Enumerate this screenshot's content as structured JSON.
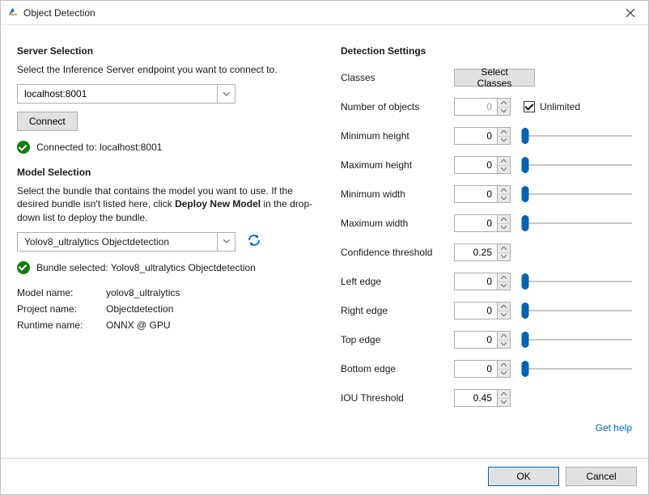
{
  "window": {
    "title": "Object Detection"
  },
  "server": {
    "heading": "Server Selection",
    "desc": "Select the Inference Server endpoint you want to connect to.",
    "endpoint": "localhost:8001",
    "connect_label": "Connect",
    "status_text": "Connected to: localhost:8001"
  },
  "model": {
    "heading": "Model Selection",
    "desc_pre": "Select the bundle that contains the model you want to use. If the desired bundle isn't listed here, click ",
    "desc_bold": "Deploy New Model",
    "desc_post": " in the drop-down list to deploy the bundle.",
    "selected": "Yolov8_ultralytics Objectdetection",
    "status_text": "Bundle selected: Yolov8_ultralytics Objectdetection",
    "kv": {
      "model_name_k": "Model name:",
      "model_name_v": "yolov8_ultralytics",
      "project_name_k": "Project name:",
      "project_name_v": "Objectdetection",
      "runtime_name_k": "Runtime name:",
      "runtime_name_v": "ONNX @ GPU"
    }
  },
  "settings": {
    "heading": "Detection Settings",
    "classes_label": "Classes",
    "select_classes_btn": "Select Classes",
    "unlimited_label": "Unlimited",
    "unlimited_checked": true,
    "rows": {
      "num_objects": {
        "label": "Number of objects",
        "value": "0",
        "slider": false,
        "disabled": true
      },
      "min_height": {
        "label": "Minimum height",
        "value": "0",
        "slider": true,
        "pct": 0
      },
      "max_height": {
        "label": "Maximum height",
        "value": "0",
        "slider": true,
        "pct": 0
      },
      "min_width": {
        "label": "Minimum width",
        "value": "0",
        "slider": true,
        "pct": 0
      },
      "max_width": {
        "label": "Maximum width",
        "value": "0",
        "slider": true,
        "pct": 0
      },
      "conf_thresh": {
        "label": "Confidence threshold",
        "value": "0.25",
        "slider": false
      },
      "left_edge": {
        "label": "Left edge",
        "value": "0",
        "slider": true,
        "pct": 0
      },
      "right_edge": {
        "label": "Right edge",
        "value": "0",
        "slider": true,
        "pct": 0
      },
      "top_edge": {
        "label": "Top edge",
        "value": "0",
        "slider": true,
        "pct": 0
      },
      "bottom_edge": {
        "label": "Bottom edge",
        "value": "0",
        "slider": true,
        "pct": 0
      },
      "iou_thresh": {
        "label": "IOU Threshold",
        "value": "0.45",
        "slider": false
      }
    },
    "help_label": "Get help"
  },
  "footer": {
    "ok": "OK",
    "cancel": "Cancel"
  },
  "colors": {
    "accent": "#0063b1",
    "link": "#0067c0",
    "ok_green": "#107c10",
    "border": "#adadad",
    "btn_bg": "#e1e1e1"
  }
}
